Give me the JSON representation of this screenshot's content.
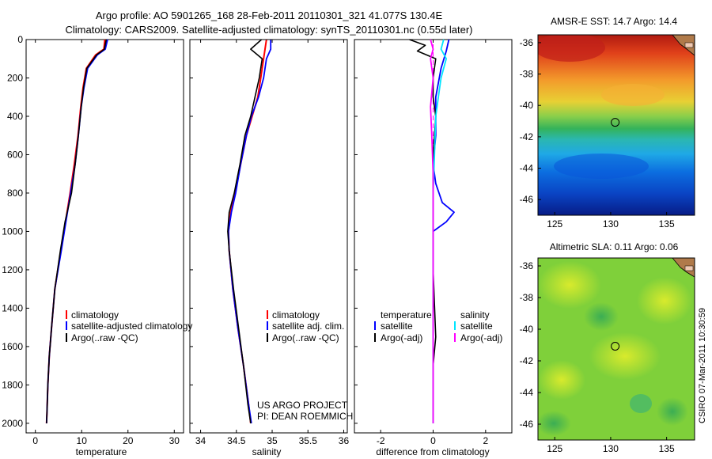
{
  "header": {
    "line1": "Argo profile: AO 5901265_168 28-Feb-2011 20110301_321 41.077S 130.4E",
    "line2": "Climatology: CARS2009. Satellite-adjusted climatology: synTS_20110301.nc (0.55d later)"
  },
  "colors": {
    "climatology": "#ff0000",
    "satellite": "#0000ff",
    "argo": "#000000",
    "salinity_satellite": "#00e5ff",
    "salinity_argo": "#ff00ff"
  },
  "chart_data": [
    {
      "type": "line",
      "id": "temperature",
      "xlabel": "temperature",
      "ylabel": "",
      "xlim": [
        -2,
        32
      ],
      "ylim": [
        2050,
        0
      ],
      "xticks": [
        0,
        10,
        20,
        30
      ],
      "yticks": [
        0,
        200,
        400,
        600,
        800,
        1000,
        1200,
        1400,
        1600,
        1800,
        2000
      ],
      "legend": [
        "climatology",
        "satellite-adjusted climatology",
        "Argo(..raw -QC)"
      ],
      "series": [
        {
          "name": "climatology",
          "color": "#ff0000",
          "x": [
            15.0,
            14.8,
            13.0,
            11.0,
            10.3,
            9.8,
            9.2,
            8.4,
            7.5,
            6.5,
            5.5,
            4.2,
            3.5,
            3.0,
            2.7,
            2.5,
            2.4
          ],
          "y": [
            0,
            50,
            80,
            150,
            250,
            350,
            500,
            650,
            800,
            950,
            1100,
            1300,
            1500,
            1650,
            1800,
            1950,
            2000
          ]
        },
        {
          "name": "satellite-adjusted climatology",
          "color": "#0000ff",
          "x": [
            15.6,
            15.1,
            13.4,
            11.3,
            10.5,
            9.9,
            9.3,
            8.6,
            7.6,
            6.6,
            5.6,
            4.2,
            3.5,
            3.0,
            2.7,
            2.5,
            2.4
          ],
          "y": [
            0,
            50,
            80,
            150,
            250,
            350,
            500,
            650,
            800,
            950,
            1100,
            1300,
            1500,
            1650,
            1800,
            1950,
            2000
          ]
        },
        {
          "name": "Argo(..raw -QC)",
          "color": "#000000",
          "x": [
            15.3,
            14.9,
            13.2,
            11.1,
            10.4,
            9.9,
            9.3,
            8.6,
            7.8,
            6.4,
            5.4,
            4.2,
            3.5,
            3.0,
            2.7,
            2.5,
            2.4
          ],
          "y": [
            0,
            50,
            80,
            150,
            250,
            350,
            500,
            650,
            800,
            950,
            1100,
            1300,
            1500,
            1650,
            1800,
            1950,
            2000
          ]
        }
      ]
    },
    {
      "type": "line",
      "id": "salinity",
      "xlabel": "salinity",
      "ylabel": "",
      "xlim": [
        33.85,
        36.05
      ],
      "ylim": [
        2050,
        0
      ],
      "xticks": [
        34,
        34.5,
        35,
        35.5,
        36
      ],
      "xtick_labels": [
        "34",
        "34.5",
        "35",
        "35.5",
        "36"
      ],
      "legend": [
        "climatology",
        "satellite adj. clim.",
        "Argo(..raw -QC)"
      ],
      "annotations": [
        "US ARGO PROJECT",
        "PI: DEAN ROEMMICH"
      ],
      "series": [
        {
          "name": "climatology",
          "color": "#ff0000",
          "x": [
            34.92,
            34.9,
            34.88,
            34.84,
            34.8,
            34.72,
            34.64,
            34.56,
            34.48,
            34.42,
            34.39,
            34.4,
            34.45,
            34.52,
            34.6,
            34.67,
            34.7
          ],
          "y": [
            0,
            50,
            100,
            200,
            300,
            400,
            500,
            650,
            800,
            900,
            1000,
            1100,
            1300,
            1500,
            1700,
            1900,
            2000
          ]
        },
        {
          "name": "satellite adj. clim.",
          "color": "#0000ff",
          "x": [
            34.98,
            34.98,
            34.92,
            34.88,
            34.81,
            34.71,
            34.64,
            34.56,
            34.49,
            34.43,
            34.39,
            34.4,
            34.45,
            34.52,
            34.6,
            34.67,
            34.71
          ],
          "y": [
            0,
            50,
            100,
            200,
            300,
            400,
            500,
            650,
            800,
            900,
            1000,
            1100,
            1300,
            1500,
            1700,
            1900,
            2000
          ]
        },
        {
          "name": "Argo(..raw -QC)",
          "color": "#000000",
          "x": [
            34.85,
            34.7,
            34.86,
            34.82,
            34.76,
            34.7,
            34.62,
            34.55,
            34.47,
            34.4,
            34.38,
            34.4,
            34.46,
            34.53,
            34.6,
            34.66,
            34.7
          ],
          "y": [
            0,
            50,
            100,
            200,
            300,
            400,
            500,
            650,
            800,
            900,
            1000,
            1100,
            1300,
            1500,
            1700,
            1900,
            2000
          ]
        }
      ]
    },
    {
      "type": "line",
      "id": "difference",
      "xlabel": "difference from climatology",
      "ylabel": "",
      "xlim": [
        -3,
        3
      ],
      "ylim": [
        2050,
        0
      ],
      "xticks": [
        -2,
        0,
        2
      ],
      "legend_groups": [
        {
          "title": "temperature",
          "entries": [
            "satellite",
            "Argo(-adj)"
          ]
        },
        {
          "title": "salinity",
          "entries": [
            "satellite",
            "Argo(-adj)"
          ]
        }
      ],
      "series": [
        {
          "name": "temperature satellite",
          "color": "#0000ff",
          "x": [
            0.6,
            0.5,
            0.3,
            0.1,
            0.1,
            0.0,
            0.1,
            0.35,
            0.8,
            0.5,
            0.0,
            0.0,
            0.0,
            0.0,
            0.0
          ],
          "y": [
            0,
            60,
            150,
            300,
            500,
            650,
            750,
            850,
            900,
            950,
            1000,
            1100,
            1400,
            1700,
            2000
          ]
        },
        {
          "name": "temperature Argo(-adj)",
          "color": "#000000",
          "x": [
            -0.9,
            -0.3,
            -0.6,
            0.1,
            0.0,
            0.0,
            0.1,
            0.0,
            0.0,
            0.0,
            0.0,
            0.1,
            0.0,
            0.0,
            0.0
          ],
          "y": [
            0,
            30,
            60,
            100,
            200,
            300,
            400,
            600,
            800,
            1000,
            1200,
            1550,
            1700,
            1850,
            2000
          ]
        },
        {
          "name": "salinity satellite",
          "color": "#00e5ff",
          "x": [
            0.4,
            0.3,
            0.5,
            0.4,
            0.3,
            0.2,
            0.1,
            0.05,
            0.0,
            0.0,
            0.0,
            0.0
          ],
          "y": [
            0,
            50,
            100,
            150,
            200,
            300,
            400,
            600,
            800,
            1200,
            1600,
            2000
          ]
        },
        {
          "name": "salinity Argo(-adj)",
          "color": "#ff00ff",
          "x": [
            -0.1,
            0.0,
            -0.1,
            0.0,
            -0.1,
            -0.05,
            0.0,
            0.0,
            0.0,
            0.0
          ],
          "y": [
            0,
            50,
            100,
            200,
            350,
            500,
            700,
            900,
            1200,
            2000
          ]
        }
      ]
    },
    {
      "type": "heatmap",
      "id": "sst-map",
      "title": "AMSR-E SST: 14.7 Argo: 14.4",
      "xlim": [
        123.5,
        137.5
      ],
      "ylim": [
        -47,
        -35.5
      ],
      "xticks": [
        125,
        130,
        135
      ],
      "yticks": [
        -36,
        -38,
        -40,
        -42,
        -44,
        -46
      ],
      "marker": {
        "lon": 130.4,
        "lat": -41.077
      }
    },
    {
      "type": "heatmap",
      "id": "sla-map",
      "title": "Altimetric SLA: 0.11 Argo: 0.06",
      "xlim": [
        123.5,
        137.5
      ],
      "ylim": [
        -47,
        -35.5
      ],
      "xticks": [
        125,
        130,
        135
      ],
      "yticks": [
        -36,
        -38,
        -40,
        -42,
        -44,
        -46
      ],
      "marker": {
        "lon": 130.4,
        "lat": -41.077
      }
    }
  ],
  "footer": {
    "stamp": "CSIRO 07-Mar-2011 10:30:59"
  }
}
